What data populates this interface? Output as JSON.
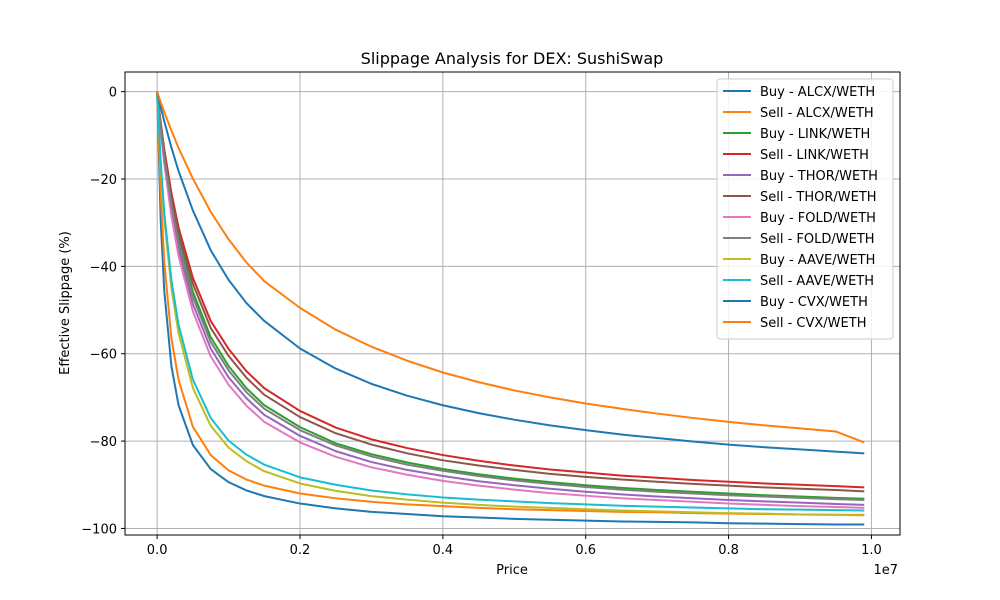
{
  "chart_data": {
    "type": "line",
    "title": "Slippage Analysis for DEX: SushiSwap",
    "xlabel": "Price",
    "ylabel": "Effective Slippage (%)",
    "x_offset_label": "1e7",
    "xlim": [
      -0.045,
      1.04
    ],
    "ylim": [
      -101.5,
      4.5
    ],
    "x_scale_factor": 10000000,
    "xticks": [
      0.0,
      0.2,
      0.4,
      0.6,
      0.8,
      1.0
    ],
    "xtick_labels": [
      "0.0",
      "0.2",
      "0.4",
      "0.6",
      "0.8",
      "1.0"
    ],
    "yticks": [
      0,
      -20,
      -40,
      -60,
      -80,
      -100
    ],
    "ytick_labels": [
      "0",
      "−20",
      "−40",
      "−60",
      "−80",
      "−100"
    ],
    "grid": true,
    "legend_position": "upper-right",
    "x": [
      0.0,
      0.005,
      0.01,
      0.02,
      0.03,
      0.05,
      0.075,
      0.1,
      0.125,
      0.15,
      0.2,
      0.25,
      0.3,
      0.35,
      0.4,
      0.45,
      0.5,
      0.55,
      0.6,
      0.65,
      0.7,
      0.75,
      0.8,
      0.85,
      0.9,
      0.95,
      0.99
    ],
    "series": [
      {
        "name": "Buy - ALCX/WETH",
        "color": "#1f77b4",
        "values": [
          0,
          -29.6,
          -45.7,
          -62.9,
          -71.8,
          -80.9,
          -86.4,
          -89.4,
          -91.3,
          -92.6,
          -94.3,
          -95.4,
          -96.2,
          -96.7,
          -97.2,
          -97.5,
          -97.8,
          -98.0,
          -98.2,
          -98.4,
          -98.5,
          -98.6,
          -98.8,
          -98.9,
          -99.0,
          -99.1,
          -99.1
        ]
      },
      {
        "name": "Sell - ALCX/WETH",
        "color": "#ff7f0e",
        "values": [
          0,
          -23.5,
          -39.0,
          -56.5,
          -66.0,
          -76.7,
          -83.2,
          -86.7,
          -88.8,
          -90.2,
          -92.0,
          -93.1,
          -93.9,
          -94.5,
          -94.9,
          -95.3,
          -95.6,
          -95.8,
          -96.0,
          -96.2,
          -96.3,
          -96.5,
          -96.6,
          -96.7,
          -96.8,
          -96.85,
          -96.9
        ]
      },
      {
        "name": "Buy - LINK/WETH",
        "color": "#2ca02c",
        "values": [
          0,
          -7.6,
          -14.4,
          -25.2,
          -33.6,
          -45.8,
          -56.2,
          -62.8,
          -67.9,
          -71.8,
          -76.8,
          -80.5,
          -83.0,
          -84.9,
          -86.4,
          -87.6,
          -88.6,
          -89.4,
          -90.1,
          -90.7,
          -91.2,
          -91.6,
          -92.0,
          -92.4,
          -92.7,
          -93.0,
          -93.2
        ]
      },
      {
        "name": "Sell - LINK/WETH",
        "color": "#d62728",
        "values": [
          0,
          -7.0,
          -13.2,
          -23.2,
          -31.1,
          -42.6,
          -52.5,
          -58.9,
          -64.0,
          -67.9,
          -73.1,
          -76.9,
          -79.6,
          -81.6,
          -83.2,
          -84.5,
          -85.6,
          -86.5,
          -87.2,
          -87.9,
          -88.4,
          -88.9,
          -89.3,
          -89.7,
          -90.0,
          -90.3,
          -90.6
        ]
      },
      {
        "name": "Buy - THOR/WETH",
        "color": "#9467bd",
        "values": [
          0,
          -8.4,
          -15.7,
          -27.2,
          -36.0,
          -48.6,
          -58.8,
          -65.4,
          -70.2,
          -74.0,
          -78.8,
          -82.3,
          -84.8,
          -86.6,
          -88.0,
          -89.2,
          -90.1,
          -90.9,
          -91.6,
          -92.2,
          -92.7,
          -93.1,
          -93.5,
          -93.8,
          -94.1,
          -94.4,
          -94.6
        ]
      },
      {
        "name": "Sell - THOR/WETH",
        "color": "#8c564b",
        "values": [
          0,
          -7.3,
          -13.8,
          -24.0,
          -32.2,
          -44.0,
          -54.1,
          -60.5,
          -65.5,
          -69.4,
          -74.5,
          -78.2,
          -80.8,
          -82.8,
          -84.4,
          -85.6,
          -86.6,
          -87.5,
          -88.2,
          -88.8,
          -89.3,
          -89.8,
          -90.2,
          -90.6,
          -90.9,
          -91.2,
          -91.5
        ]
      },
      {
        "name": "Buy - FOLD/WETH",
        "color": "#e377c2",
        "values": [
          0,
          -8.9,
          -16.6,
          -28.5,
          -37.6,
          -50.3,
          -60.6,
          -67.1,
          -71.9,
          -75.6,
          -80.3,
          -83.6,
          -86.0,
          -87.7,
          -89.1,
          -90.2,
          -91.1,
          -91.9,
          -92.5,
          -93.1,
          -93.5,
          -93.9,
          -94.3,
          -94.6,
          -94.9,
          -95.1,
          -95.3
        ]
      },
      {
        "name": "Sell - FOLD/WETH",
        "color": "#7f7f7f",
        "values": [
          0,
          -8.0,
          -15.0,
          -26.0,
          -34.6,
          -47.0,
          -57.3,
          -63.8,
          -68.8,
          -72.6,
          -77.5,
          -81.0,
          -83.5,
          -85.4,
          -86.8,
          -88.0,
          -89.0,
          -89.8,
          -90.5,
          -91.1,
          -91.6,
          -92.0,
          -92.4,
          -92.7,
          -93.0,
          -93.3,
          -93.5
        ]
      },
      {
        "name": "Buy - AAVE/WETH",
        "color": "#bcbd22",
        "values": [
          0,
          -17.0,
          -29.3,
          -45.0,
          -55.3,
          -67.8,
          -76.5,
          -81.5,
          -84.6,
          -86.9,
          -89.7,
          -91.4,
          -92.6,
          -93.4,
          -94.1,
          -94.6,
          -95.0,
          -95.3,
          -95.6,
          -95.9,
          -96.1,
          -96.3,
          -96.5,
          -96.6,
          -96.8,
          -96.9,
          -97.0
        ]
      },
      {
        "name": "Sell - AAVE/WETH",
        "color": "#17becf",
        "values": [
          0,
          -16.0,
          -27.8,
          -43.2,
          -53.4,
          -65.9,
          -74.7,
          -79.9,
          -83.1,
          -85.4,
          -88.3,
          -90.0,
          -91.3,
          -92.2,
          -92.9,
          -93.4,
          -93.8,
          -94.2,
          -94.5,
          -94.8,
          -95.0,
          -95.2,
          -95.4,
          -95.6,
          -95.7,
          -95.8,
          -95.9
        ]
      },
      {
        "name": "Buy - CVX/WETH",
        "color": "#1f77b4",
        "values": [
          0,
          -3.5,
          -6.8,
          -12.8,
          -18.2,
          -27.2,
          -36.3,
          -43.1,
          -48.4,
          -52.5,
          -58.8,
          -63.4,
          -66.9,
          -69.6,
          -71.8,
          -73.6,
          -75.1,
          -76.4,
          -77.5,
          -78.5,
          -79.3,
          -80.1,
          -80.8,
          -81.4,
          -81.9,
          -82.4,
          -82.8
        ]
      },
      {
        "name": "Sell - CVX/WETH",
        "color": "#ff7f0e",
        "values": [
          0,
          -2.4,
          -4.7,
          -8.9,
          -12.9,
          -19.9,
          -27.5,
          -33.8,
          -39.1,
          -43.4,
          -49.5,
          -54.5,
          -58.4,
          -61.6,
          -64.3,
          -66.5,
          -68.4,
          -70.0,
          -71.4,
          -72.6,
          -73.7,
          -74.7,
          -75.6,
          -76.4,
          -77.1,
          -77.8,
          -80.3
        ]
      }
    ]
  }
}
